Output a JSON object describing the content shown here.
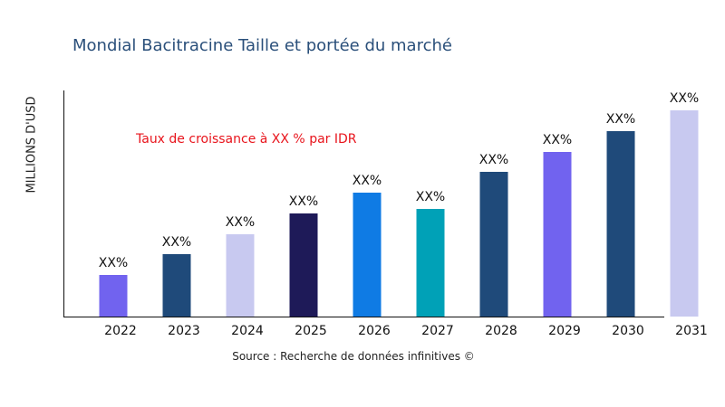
{
  "chart_data": {
    "type": "bar",
    "title": "Mondial Bacitracine Taille et portée du marché",
    "ylabel": "MILLIONS D'USD",
    "xlabel": "",
    "categories": [
      "2022",
      "2023",
      "2024",
      "2025",
      "2026",
      "2027",
      "2028",
      "2029",
      "2030",
      "2031"
    ],
    "values": [
      46,
      69,
      91,
      114,
      137,
      119,
      160,
      182,
      205,
      228
    ],
    "ylim": [
      0,
      250
    ],
    "data_labels": [
      "XX%",
      "XX%",
      "XX%",
      "XX%",
      "XX%",
      "XX%",
      "XX%",
      "XX%",
      "XX%",
      "XX%"
    ],
    "colors": [
      "#7163ef",
      "#1f4a7a",
      "#c8c9f0",
      "#1e1a58",
      "#0f7be4",
      "#00a1b7",
      "#1f4a7a",
      "#7163ef",
      "#1f4a7a",
      "#c8c9f0"
    ],
    "annotation": "Taux de croissance à XX % par IDR",
    "grid": false,
    "legend": "none"
  },
  "source": "Source : Recherche de données infinitives ©"
}
